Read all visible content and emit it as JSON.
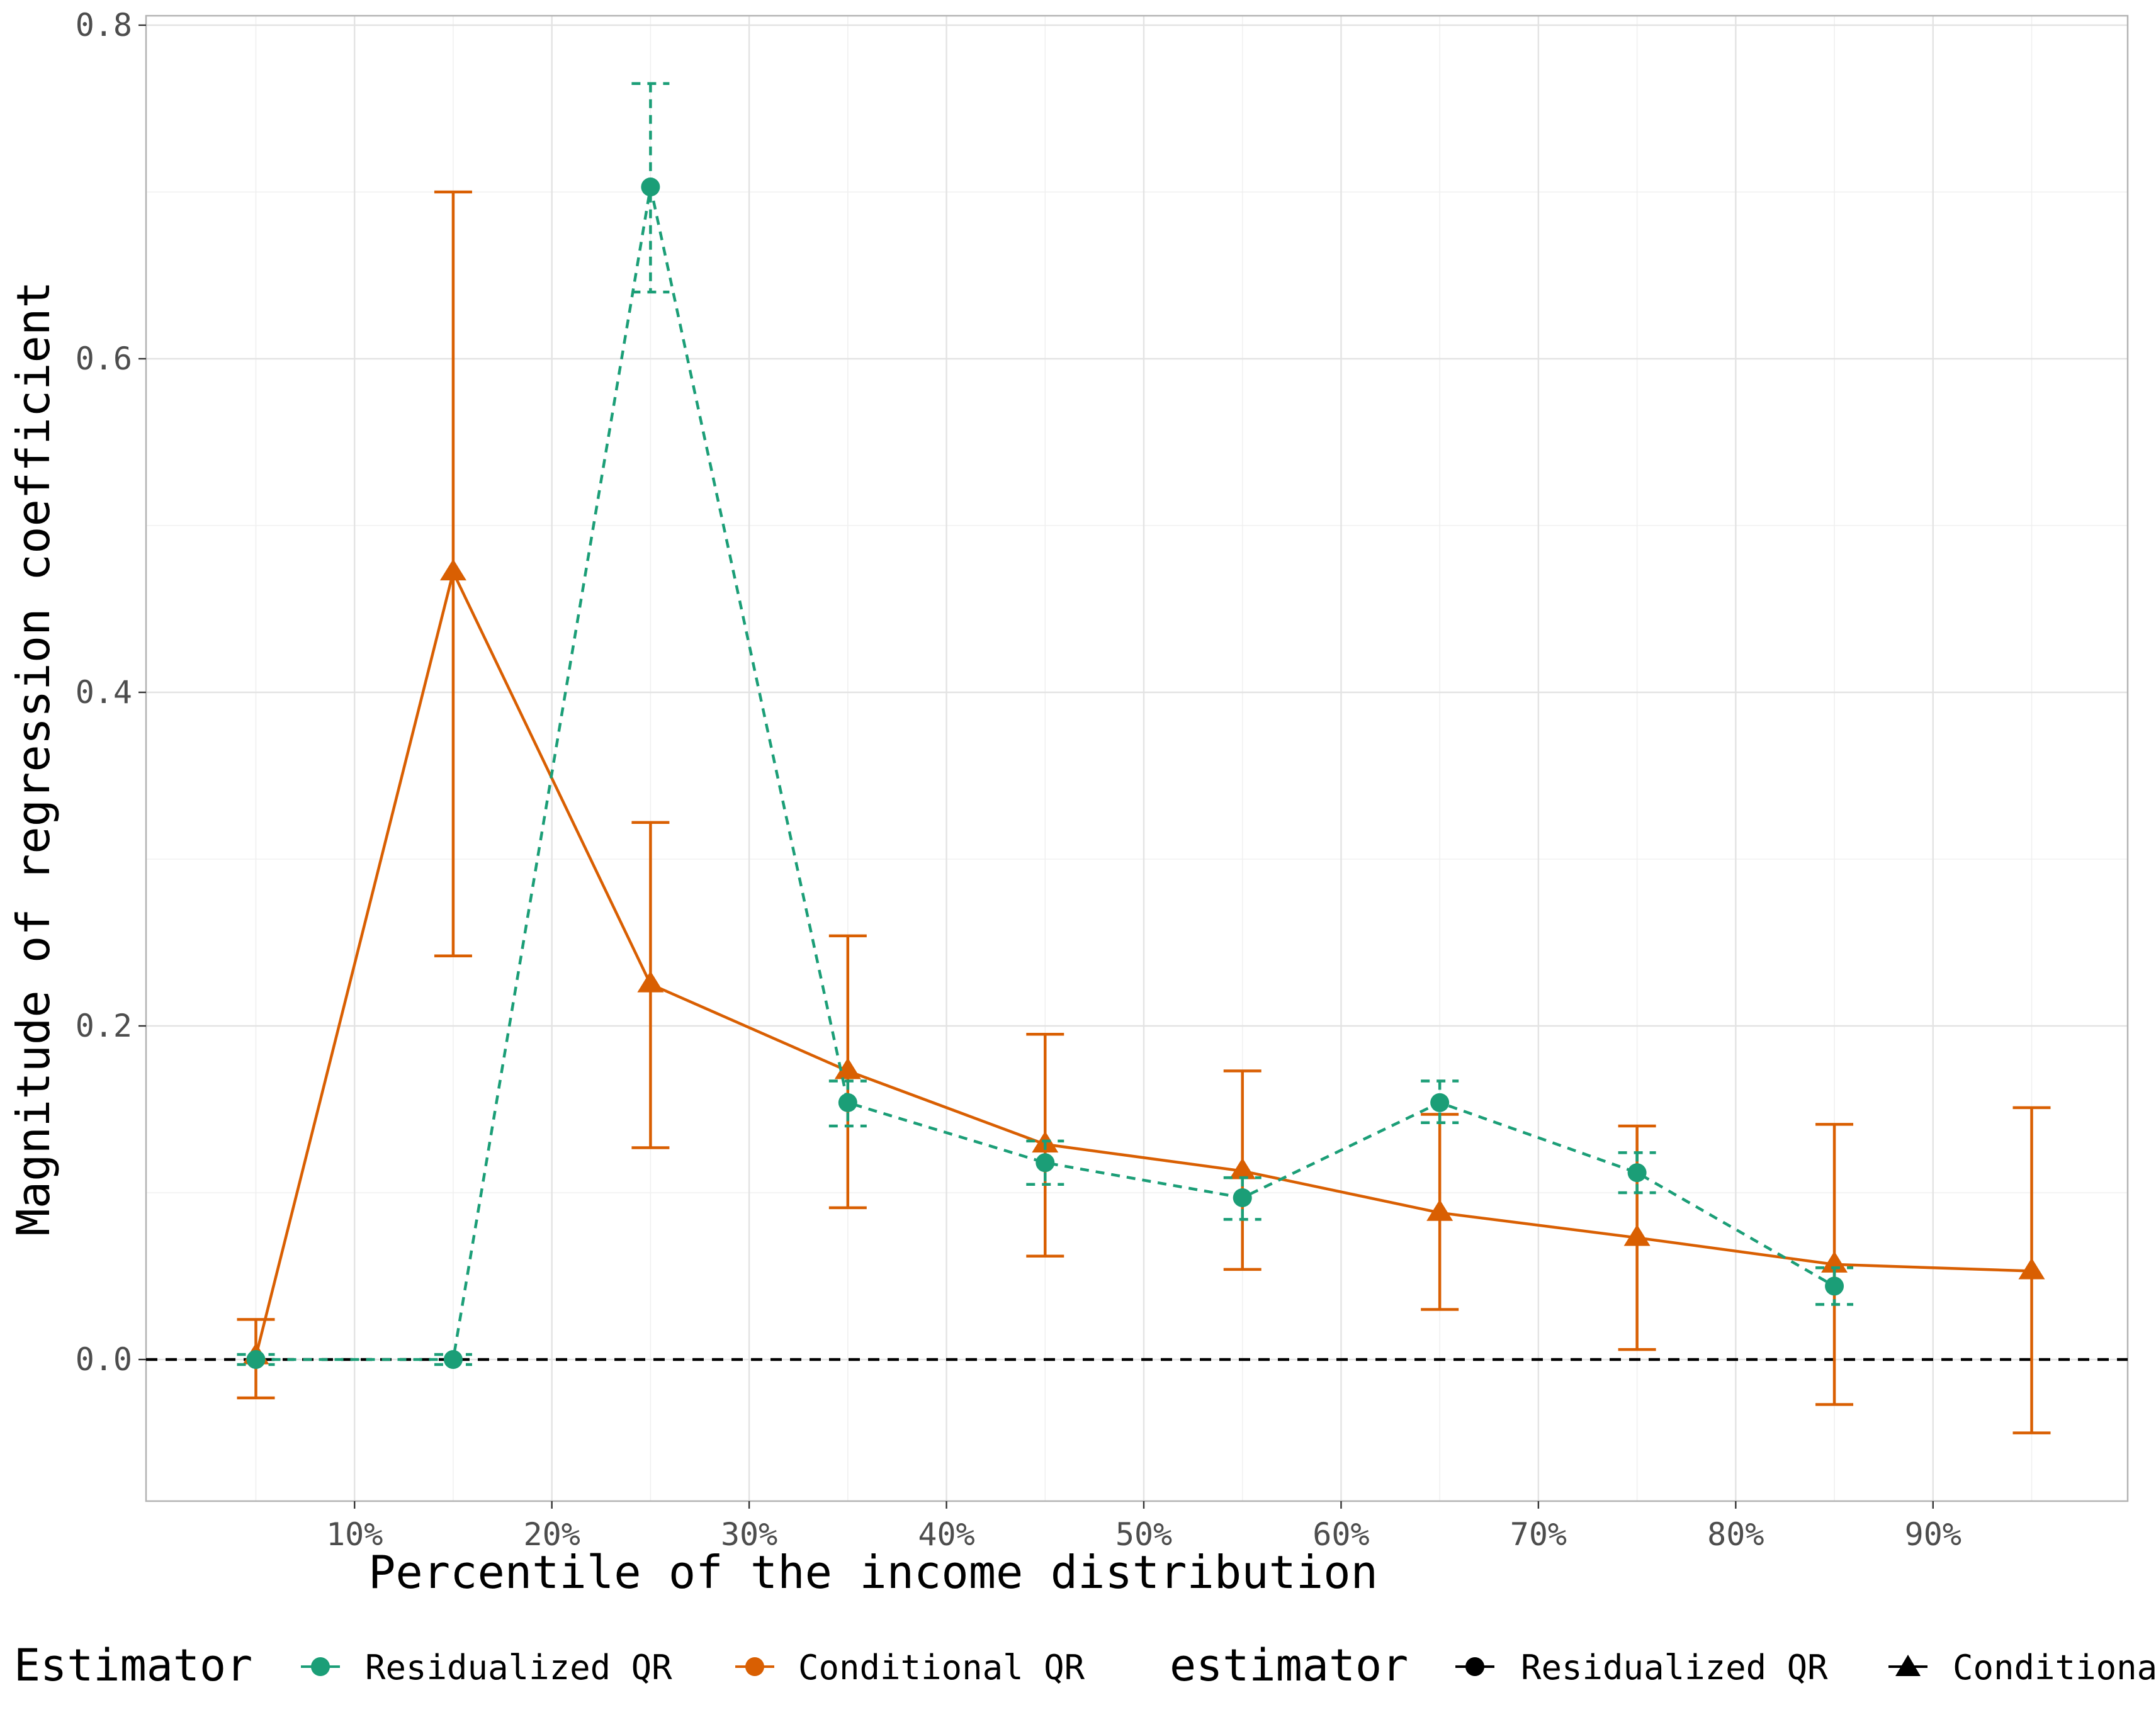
{
  "chart_data": {
    "type": "line",
    "xlabel": "Percentile of the income distribution",
    "ylabel": "Magnitude of regression coefficient",
    "x": [
      5,
      15,
      25,
      35,
      45,
      55,
      65,
      75,
      85,
      95
    ],
    "xlim": [
      0,
      100
    ],
    "ylim": [
      -0.085,
      0.805
    ],
    "x_ticks": [
      10,
      20,
      30,
      40,
      50,
      60,
      70,
      80,
      90
    ],
    "x_tick_labels": [
      "10%",
      "20%",
      "30%",
      "40%",
      "50%",
      "60%",
      "70%",
      "80%",
      "90%"
    ],
    "y_ticks": [
      0.0,
      0.2,
      0.4,
      0.6,
      0.8
    ],
    "y_tick_labels": [
      "0.0",
      "0.2",
      "0.4",
      "0.6",
      "0.8"
    ],
    "grid": true,
    "reference_line": {
      "y": 0.0,
      "style": "dashed",
      "color": "#000000"
    },
    "series": [
      {
        "name": "Residualized QR",
        "color": "#1b9e77",
        "line_style": "dashed",
        "marker": "circle",
        "x": [
          5,
          15,
          25,
          35,
          45,
          55,
          65,
          75,
          85
        ],
        "values": [
          0.0,
          0.0,
          0.703,
          0.154,
          0.118,
          0.097,
          0.154,
          0.112,
          0.044
        ],
        "lower": [
          -0.003,
          -0.003,
          0.64,
          0.14,
          0.105,
          0.084,
          0.142,
          0.1,
          0.033
        ],
        "upper": [
          0.003,
          0.003,
          0.765,
          0.167,
          0.131,
          0.109,
          0.167,
          0.124,
          0.055
        ]
      },
      {
        "name": "Conditional QR",
        "color": "#d95f02",
        "line_style": "solid",
        "marker": "triangle",
        "x": [
          5,
          15,
          25,
          35,
          45,
          55,
          65,
          75,
          85,
          95
        ],
        "values": [
          0.002,
          0.472,
          0.225,
          0.173,
          0.129,
          0.113,
          0.088,
          0.073,
          0.057,
          0.053
        ],
        "lower": [
          -0.023,
          0.242,
          0.127,
          0.091,
          0.062,
          0.054,
          0.03,
          0.006,
          -0.027,
          -0.044
        ],
        "upper": [
          0.024,
          0.7,
          0.322,
          0.254,
          0.195,
          0.173,
          0.147,
          0.14,
          0.141,
          0.151
        ]
      }
    ],
    "legend": {
      "placement": "bottom",
      "color_title": "Estimator",
      "shape_title": "estimator",
      "color_entries": [
        "Residualized QR",
        "Conditional QR"
      ],
      "shape_entries": [
        "Residualized QR",
        "Conditional QR"
      ]
    }
  }
}
